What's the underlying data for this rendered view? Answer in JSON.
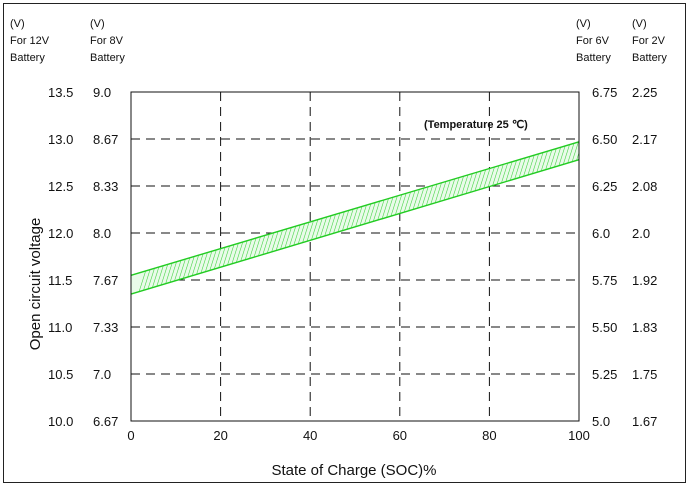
{
  "chart_data": {
    "type": "line",
    "xlabel": "State of Charge (SOC)%",
    "ylabel": "Open circuit voltage",
    "annotation": "(Temperature 25 ℃)",
    "xlim": [
      0,
      100
    ],
    "ylim": [
      10.0,
      13.5
    ],
    "x_ticks": [
      0,
      20,
      40,
      60,
      80,
      100
    ],
    "y_ticks_12v": [
      13.5,
      13.0,
      12.5,
      12.0,
      11.5,
      11.0,
      10.5,
      10.0
    ],
    "axes": [
      {
        "side": "left",
        "unit": "(V)",
        "label_line1": "For 12V",
        "label_line2": "Battery",
        "ticks": [
          "13.5",
          "13.0",
          "12.5",
          "12.0",
          "11.5",
          "11.0",
          "10.5",
          "10.0"
        ]
      },
      {
        "side": "left",
        "unit": "(V)",
        "label_line1": "For 8V",
        "label_line2": "Battery",
        "ticks": [
          "9.0",
          "8.67",
          "8.33",
          "8.0",
          "7.67",
          "7.33",
          "7.0",
          "6.67"
        ]
      },
      {
        "side": "right",
        "unit": "(V)",
        "label_line1": "For 6V",
        "label_line2": "Battery",
        "ticks": [
          "6.75",
          "6.50",
          "6.25",
          "6.0",
          "5.75",
          "5.50",
          "5.25",
          "5.0"
        ]
      },
      {
        "side": "right",
        "unit": "(V)",
        "label_line1": "For 2V",
        "label_line2": "Battery",
        "ticks": [
          "2.25",
          "2.17",
          "2.08",
          "2.0",
          "1.92",
          "1.83",
          "1.75",
          "1.67"
        ]
      }
    ],
    "series": [
      {
        "x": [
          0,
          100
        ],
        "upper": [
          11.55,
          12.97
        ],
        "lower": [
          11.35,
          12.78
        ],
        "color": "#22cc22"
      }
    ],
    "grid": true
  }
}
